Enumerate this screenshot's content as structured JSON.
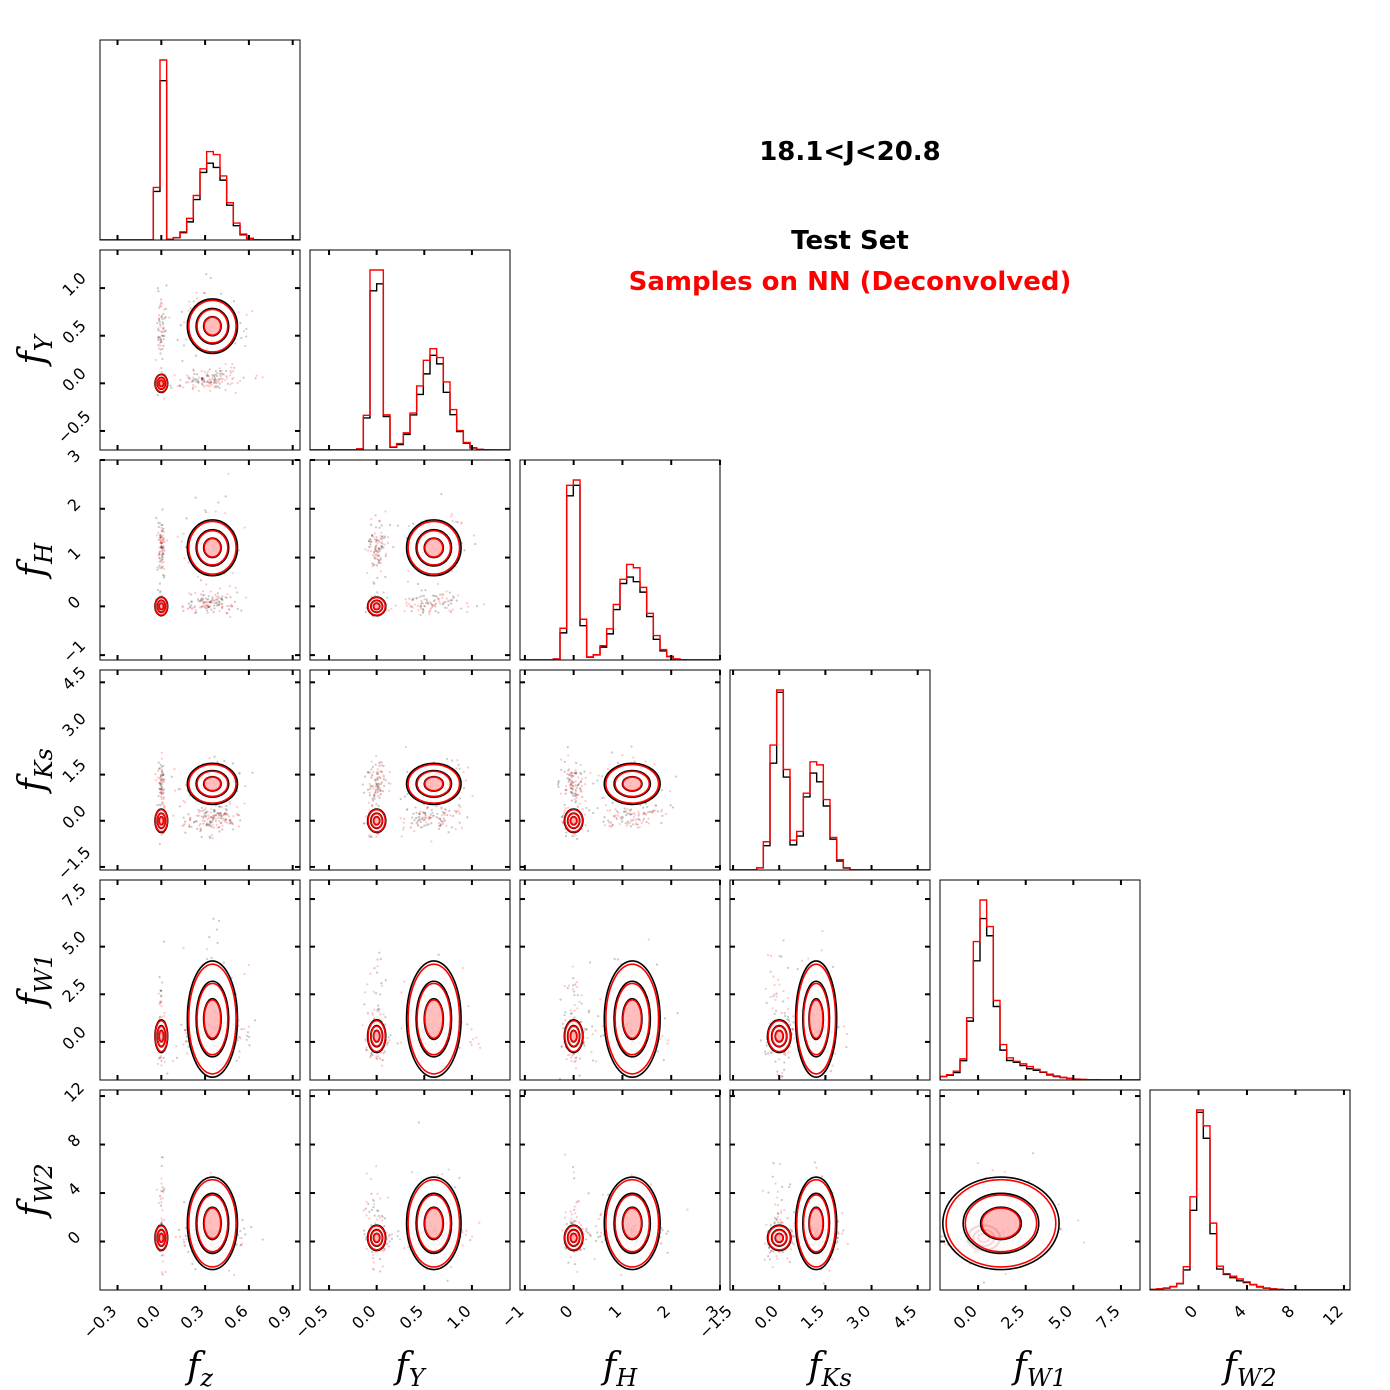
{
  "chart_data": {
    "type": "corner",
    "title": "18.1<J<20.8",
    "legend": [
      {
        "label": "Test Set",
        "color": "#000000"
      },
      {
        "label": "Samples on NN (Deconvolved)",
        "color": "#ff0000"
      }
    ],
    "colors": {
      "reference": "#000000",
      "model": "#ff0000"
    },
    "variables": [
      {
        "name": "f",
        "sub": "z",
        "range": [
          -0.42,
          0.95
        ],
        "ticks": [
          -0.3,
          0.0,
          0.3,
          0.6,
          0.9
        ],
        "tick_labels": [
          "−0.3",
          "0.0",
          "0.3",
          "0.6",
          "0.9"
        ],
        "modes": [
          {
            "x": 0.0,
            "w": 0.35,
            "s": 0.012
          },
          {
            "x": 0.35,
            "w": 0.65,
            "s": 0.09
          }
        ]
      },
      {
        "name": "f",
        "sub": "Y",
        "range": [
          -0.7,
          1.4
        ],
        "ticks": [
          -0.5,
          0.0,
          0.5,
          1.0
        ],
        "tick_labels": [
          "−0.5",
          "0.0",
          "0.5",
          "1.0"
        ],
        "modes": [
          {
            "x": 0.0,
            "w": 0.45,
            "s": 0.05
          },
          {
            "x": 0.6,
            "w": 0.55,
            "s": 0.15
          }
        ]
      },
      {
        "name": "f",
        "sub": "H",
        "range": [
          -1.1,
          3.0
        ],
        "ticks": [
          -1,
          0,
          1,
          2,
          3
        ],
        "tick_labels": [
          "−1",
          "0",
          "1",
          "2",
          "3"
        ],
        "modes": [
          {
            "x": 0.0,
            "w": 0.45,
            "s": 0.1
          },
          {
            "x": 1.2,
            "w": 0.55,
            "s": 0.3
          }
        ]
      },
      {
        "name": "f",
        "sub": "Ks",
        "range": [
          -1.6,
          4.9
        ],
        "ticks": [
          -1.5,
          0.0,
          1.5,
          3.0,
          4.5
        ],
        "tick_labels": [
          "−1.5",
          "0.0",
          "1.5",
          "3.0",
          "4.5"
        ],
        "modes": [
          {
            "x": 0.0,
            "w": 0.5,
            "s": 0.2
          },
          {
            "x": 1.2,
            "w": 0.5,
            "s": 0.35
          }
        ]
      },
      {
        "name": "f",
        "sub": "W1",
        "range": [
          -2.0,
          8.5
        ],
        "ticks": [
          0.0,
          2.5,
          5.0,
          7.5
        ],
        "tick_labels": [
          "0.0",
          "2.5",
          "5.0",
          "7.5"
        ],
        "modes": [
          {
            "x": 0.3,
            "w": 0.7,
            "s": 0.45
          },
          {
            "x": 1.2,
            "w": 0.3,
            "s": 1.6
          }
        ]
      },
      {
        "name": "f",
        "sub": "W2",
        "range": [
          -4.0,
          12.5
        ],
        "ticks": [
          0,
          4,
          8,
          12
        ],
        "tick_labels": [
          "0",
          "4",
          "8",
          "12"
        ],
        "modes": [
          {
            "x": 0.3,
            "w": 0.75,
            "s": 0.55
          },
          {
            "x": 1.5,
            "w": 0.25,
            "s": 2.0
          }
        ]
      }
    ]
  }
}
